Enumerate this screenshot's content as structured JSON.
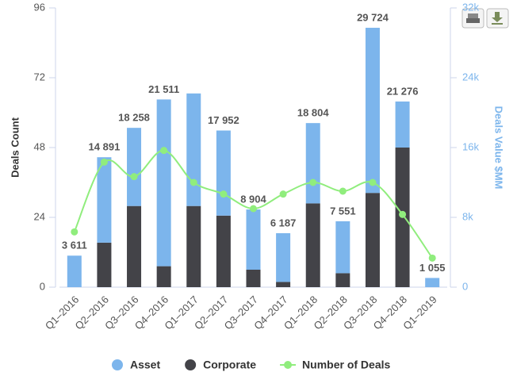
{
  "chart_data": {
    "type": "bar",
    "categories": [
      "Q1–2016",
      "Q2–2016",
      "Q3–2016",
      "Q4–2016",
      "Q1–2017",
      "Q2–2017",
      "Q3–2017",
      "Q4–2017",
      "Q1–2018",
      "Q2–2018",
      "Q3–2018",
      "Q4–2018",
      "Q1–2019"
    ],
    "ylabel": "Deals Count",
    "y2label": "Deals Value $MM",
    "ylim": [
      0,
      96
    ],
    "yticks": [
      0,
      24,
      48,
      72,
      96
    ],
    "y2lim": [
      0,
      32000
    ],
    "y2ticks": [
      0,
      {
        "value": 8000,
        "label": "8k"
      },
      {
        "value": 16000,
        "label": "16k"
      },
      {
        "value": 24000,
        "label": "24k"
      },
      {
        "value": 32000,
        "label": "32k"
      }
    ],
    "legend": "bottom",
    "series": [
      {
        "name": "Asset",
        "color": "#7cb5ec",
        "axis": "y2",
        "stack": true,
        "values": [
          3611,
          9791,
          8958,
          19111,
          12900,
          9752,
          6904,
          5587,
          9204,
          5951,
          18924,
          5276,
          1055
        ]
      },
      {
        "name": "Corporate",
        "color": "#434348",
        "axis": "y2",
        "stack": true,
        "values": [
          0,
          5100,
          9300,
          2400,
          9300,
          8200,
          2000,
          600,
          9600,
          1600,
          10800,
          16000,
          0
        ]
      },
      {
        "name": "Number of Deals",
        "color": "#90ed7d",
        "type": "line",
        "values": [
          19,
          43,
          38,
          47,
          36,
          32,
          27,
          32,
          36,
          33,
          36,
          25,
          10
        ]
      }
    ],
    "totals": [
      3611,
      14891,
      18258,
      21511,
      null,
      17952,
      8904,
      6187,
      18804,
      7551,
      29724,
      21276,
      1055
    ],
    "total_labels": [
      "3 611",
      "14 891",
      "18 258",
      "21 511",
      null,
      "17 952",
      "8 904",
      "6 187",
      "18 804",
      "7 551",
      "29 724",
      "21 276",
      "1 055"
    ]
  }
}
